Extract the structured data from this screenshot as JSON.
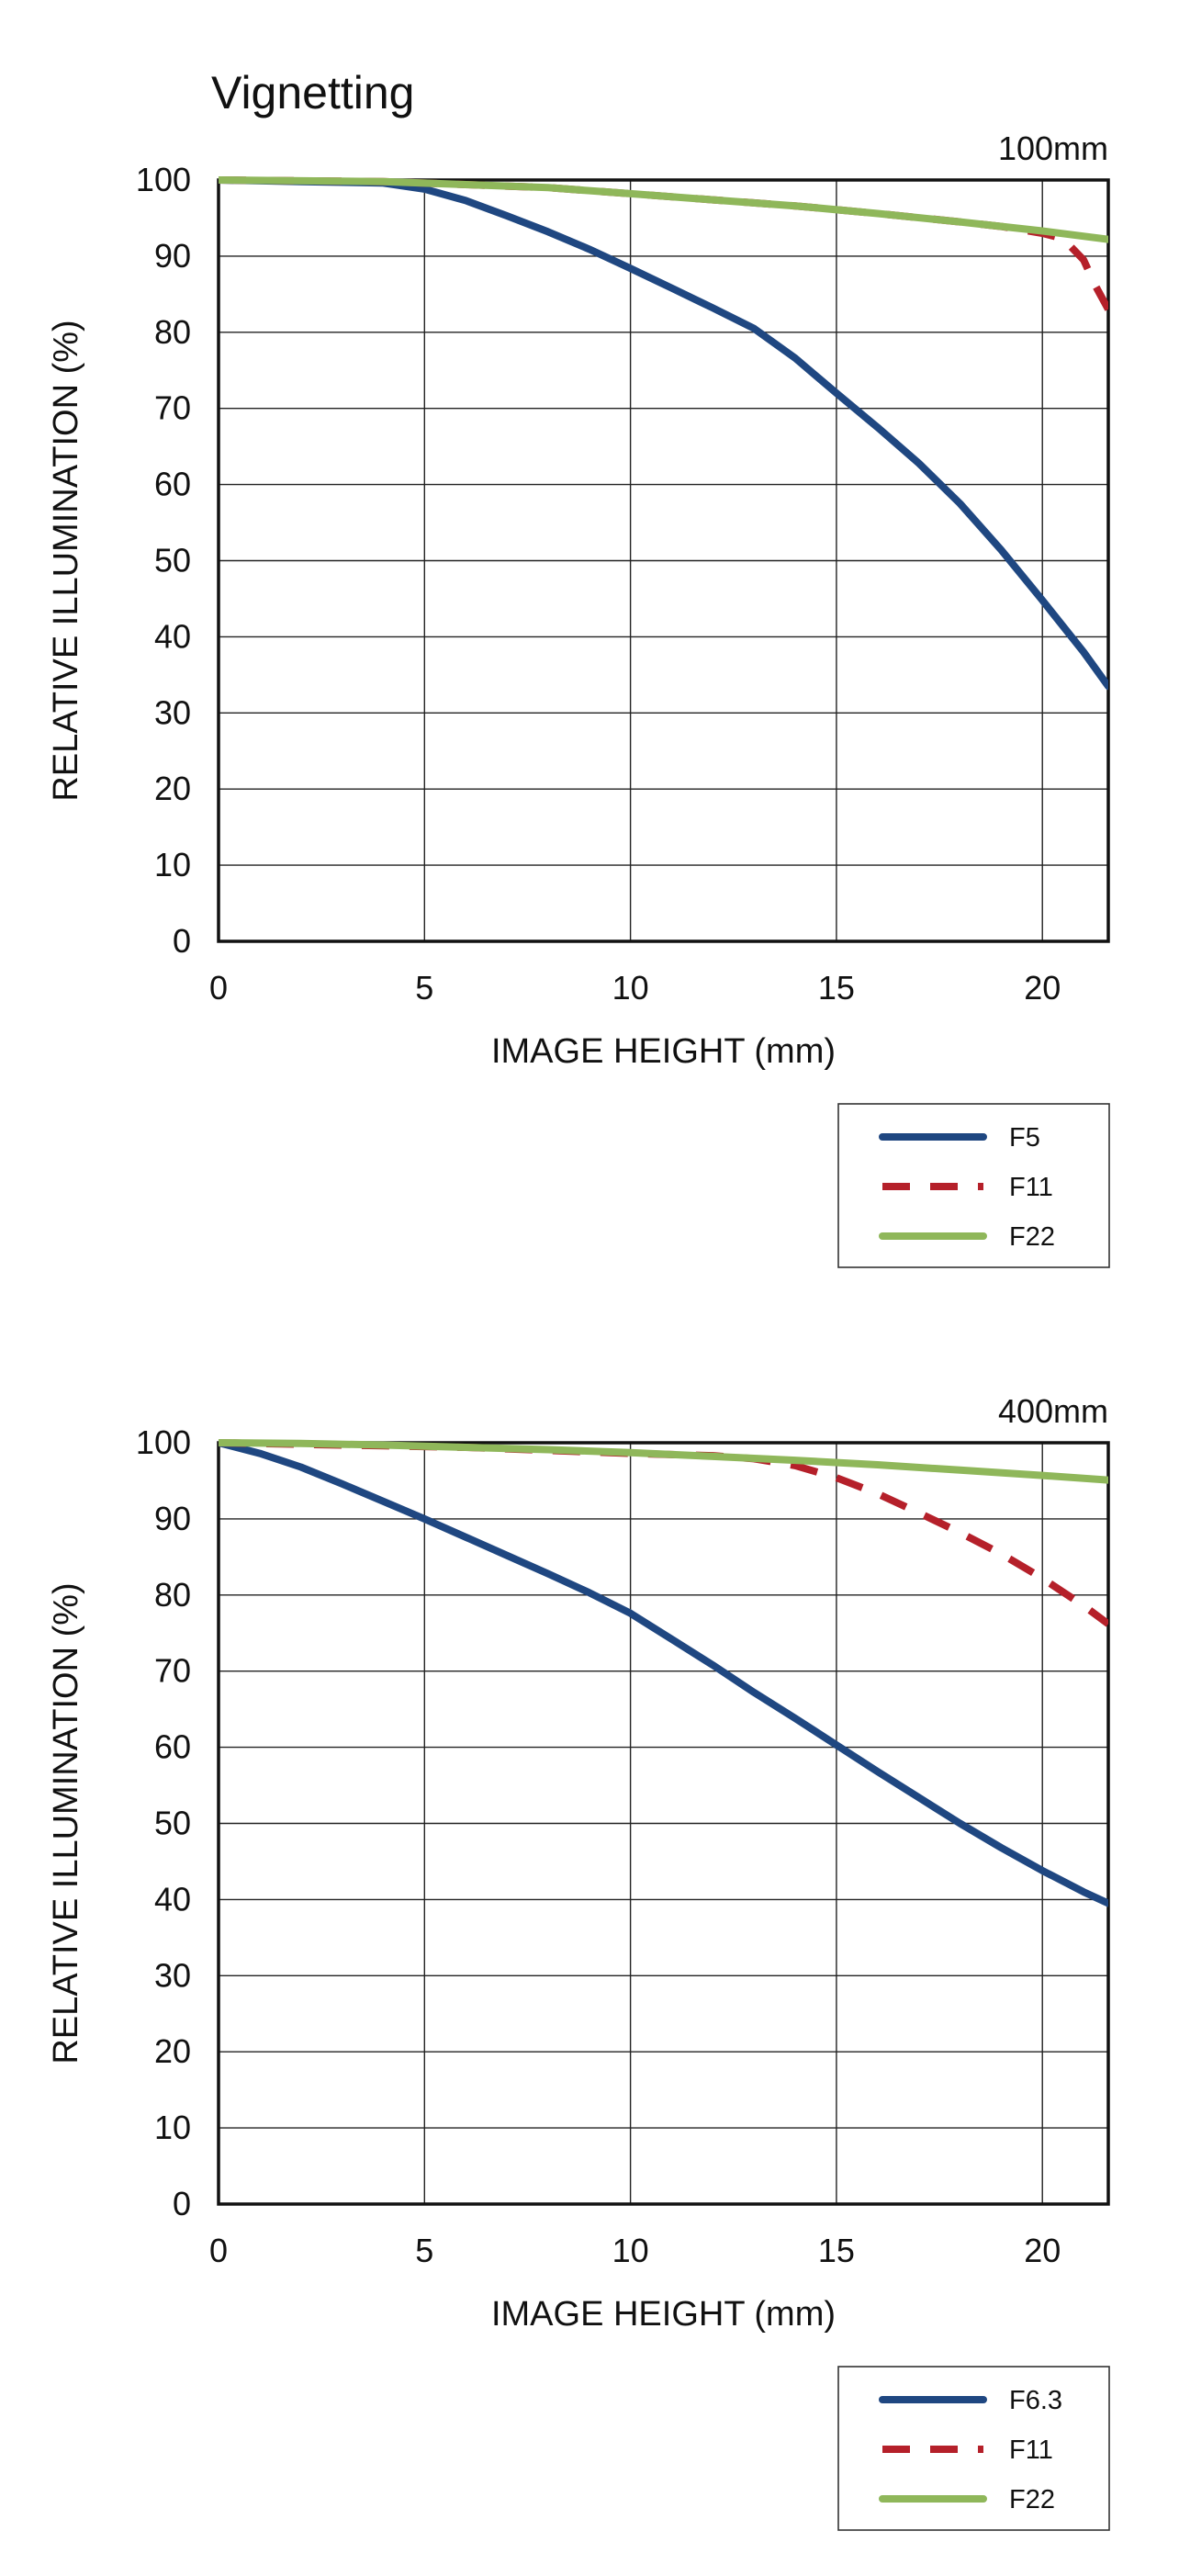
{
  "page_title": "Vignetting",
  "colors": {
    "F5": "#1f4781",
    "F6.3": "#1f4781",
    "F11": "#b5202a",
    "F22": "#8fb75a",
    "grid": "#222222"
  },
  "chart_data": [
    {
      "type": "line",
      "title": "Vignetting",
      "subtitle": "100mm",
      "xlabel": "IMAGE HEIGHT (mm)",
      "ylabel": "RELATIVE ILLUMINATION (%)",
      "xlim": [
        0,
        21.6
      ],
      "ylim": [
        0,
        100
      ],
      "x_ticks": [
        "0",
        "5",
        "10",
        "15",
        "20"
      ],
      "y_ticks": [
        "0",
        "10",
        "20",
        "30",
        "40",
        "50",
        "60",
        "70",
        "80",
        "90",
        "100"
      ],
      "grid": true,
      "legend_position": "bottom-right",
      "series": [
        {
          "name": "F5",
          "color": "#1f4781",
          "dash": "solid",
          "x": [
            0,
            2,
            4,
            5,
            6,
            7,
            8,
            9,
            10,
            11,
            12,
            13,
            14,
            15,
            16,
            17,
            18,
            19,
            20,
            21,
            21.6
          ],
          "y": [
            100,
            99.8,
            99.6,
            98.8,
            97.3,
            95.3,
            93.2,
            90.9,
            88.4,
            85.8,
            83.2,
            80.5,
            76.6,
            72.0,
            67.5,
            62.8,
            57.5,
            51.4,
            44.8,
            38.0,
            33.5
          ]
        },
        {
          "name": "F11",
          "color": "#b5202a",
          "dash": "dashed",
          "x": [
            0,
            4,
            6,
            8,
            10,
            12,
            14,
            16,
            18,
            19,
            20,
            20.5,
            21,
            21.3,
            21.6
          ],
          "y": [
            100,
            99.8,
            99.4,
            99.0,
            98.2,
            97.4,
            96.6,
            95.6,
            94.5,
            93.9,
            93.0,
            92.3,
            89.5,
            86.0,
            83.0
          ]
        },
        {
          "name": "F22",
          "color": "#8fb75a",
          "dash": "solid",
          "x": [
            0,
            4,
            6,
            8,
            10,
            12,
            14,
            16,
            18,
            20,
            21.6
          ],
          "y": [
            100,
            99.8,
            99.4,
            99.0,
            98.2,
            97.4,
            96.6,
            95.6,
            94.5,
            93.3,
            92.2
          ]
        }
      ]
    },
    {
      "type": "line",
      "title": "",
      "subtitle": "400mm",
      "xlabel": "IMAGE HEIGHT (mm)",
      "ylabel": "RELATIVE ILLUMINATION (%)",
      "xlim": [
        0,
        21.6
      ],
      "ylim": [
        0,
        100
      ],
      "x_ticks": [
        "0",
        "5",
        "10",
        "15",
        "20"
      ],
      "y_ticks": [
        "0",
        "10",
        "20",
        "30",
        "40",
        "50",
        "60",
        "70",
        "80",
        "90",
        "100"
      ],
      "grid": true,
      "legend_position": "bottom-right",
      "series": [
        {
          "name": "F6.3",
          "color": "#1f4781",
          "dash": "solid",
          "x": [
            0,
            1,
            2,
            3,
            4,
            5,
            6,
            7,
            8,
            9,
            10,
            11,
            12,
            13,
            14,
            15,
            16,
            17,
            18,
            19,
            20,
            21,
            21.6
          ],
          "y": [
            100,
            98.6,
            96.8,
            94.6,
            92.3,
            90.0,
            87.6,
            85.2,
            82.8,
            80.3,
            77.6,
            74.2,
            70.8,
            67.2,
            63.8,
            60.3,
            56.8,
            53.4,
            50.0,
            46.8,
            43.8,
            41.0,
            39.5
          ]
        },
        {
          "name": "F11",
          "color": "#b5202a",
          "dash": "dashed",
          "x": [
            0,
            2,
            4,
            6,
            8,
            10,
            12,
            13,
            14,
            15,
            16,
            17,
            18,
            19,
            20,
            21,
            21.6
          ],
          "y": [
            100,
            99.8,
            99.6,
            99.4,
            99.0,
            98.6,
            98.3,
            97.9,
            97.0,
            95.4,
            93.3,
            90.8,
            88.2,
            85.4,
            82.2,
            78.6,
            76.2
          ]
        },
        {
          "name": "F22",
          "color": "#8fb75a",
          "dash": "solid",
          "x": [
            0,
            2,
            4,
            6,
            8,
            10,
            12,
            14,
            16,
            18,
            20,
            21.6
          ],
          "y": [
            100,
            99.9,
            99.7,
            99.4,
            99.1,
            98.7,
            98.2,
            97.7,
            97.1,
            96.4,
            95.7,
            95.1
          ]
        }
      ]
    }
  ]
}
